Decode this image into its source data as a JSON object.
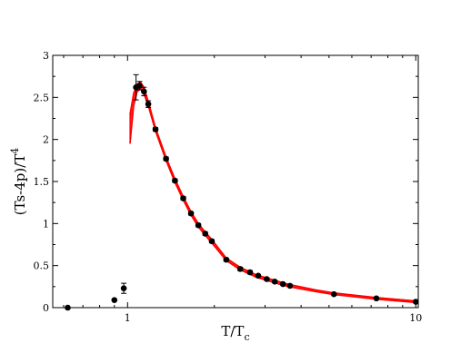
{
  "chart_data": {
    "type": "scatter",
    "title": "",
    "xlabel": "T/T",
    "xlabel_sub": "c",
    "ylabel": "(Ts-4p)/T",
    "ylabel_sup": "4",
    "xscale": "log",
    "xlim": [
      0.55,
      10.2
    ],
    "ylim": [
      0,
      3
    ],
    "grid": false,
    "legend": "none",
    "x_ticks": [
      {
        "value": 1,
        "label": "1"
      },
      {
        "value": 10,
        "label": "10"
      }
    ],
    "y_ticks": [
      {
        "value": 0,
        "label": "0"
      },
      {
        "value": 0.5,
        "label": "0.5"
      },
      {
        "value": 1,
        "label": "1"
      },
      {
        "value": 1.5,
        "label": "1.5"
      },
      {
        "value": 2,
        "label": "2"
      },
      {
        "value": 2.5,
        "label": "2.5"
      },
      {
        "value": 3,
        "label": "3"
      }
    ],
    "series": [
      {
        "kind": "points-with-errorbars",
        "color": "#000000",
        "x": [
          0.62,
          0.9,
          0.97,
          1.07,
          1.1,
          1.14,
          1.18,
          1.25,
          1.36,
          1.46,
          1.56,
          1.66,
          1.76,
          1.86,
          1.96,
          2.2,
          2.46,
          2.66,
          2.84,
          3.04,
          3.24,
          3.46,
          3.66,
          5.2,
          7.3,
          10.0
        ],
        "y": [
          0.0,
          0.09,
          0.23,
          2.62,
          2.64,
          2.57,
          2.42,
          2.12,
          1.77,
          1.51,
          1.3,
          1.12,
          0.98,
          0.88,
          0.79,
          0.57,
          0.46,
          0.42,
          0.38,
          0.34,
          0.31,
          0.28,
          0.26,
          0.16,
          0.11,
          0.07
        ],
        "err": [
          0,
          0,
          0.06,
          0.15,
          0.05,
          0.05,
          0.04,
          0.02,
          0.02,
          0.02,
          0.02,
          0.02,
          0.02,
          0.02,
          0.02,
          0.02,
          0.02,
          0.02,
          0.01,
          0.01,
          0.01,
          0.01,
          0.01,
          0.01,
          0.01,
          0.01
        ]
      },
      {
        "kind": "band",
        "color": "#ff0000",
        "x": [
          1.02,
          1.05,
          1.08,
          1.11,
          1.14,
          1.18,
          1.25,
          1.36,
          1.46,
          1.56,
          1.66,
          1.76,
          1.86,
          1.96,
          2.2,
          2.46,
          2.8,
          3.2,
          3.6,
          4.5,
          5.2,
          7.3,
          10.0
        ],
        "y_low": [
          1.95,
          2.4,
          2.57,
          2.6,
          2.54,
          2.4,
          2.1,
          1.75,
          1.49,
          1.28,
          1.1,
          0.96,
          0.86,
          0.77,
          0.56,
          0.45,
          0.36,
          0.3,
          0.25,
          0.19,
          0.155,
          0.1,
          0.06
        ],
        "y_high": [
          2.3,
          2.55,
          2.66,
          2.68,
          2.62,
          2.45,
          2.14,
          1.79,
          1.53,
          1.32,
          1.14,
          1.0,
          0.9,
          0.81,
          0.59,
          0.48,
          0.39,
          0.33,
          0.28,
          0.21,
          0.175,
          0.12,
          0.08
        ]
      }
    ]
  }
}
